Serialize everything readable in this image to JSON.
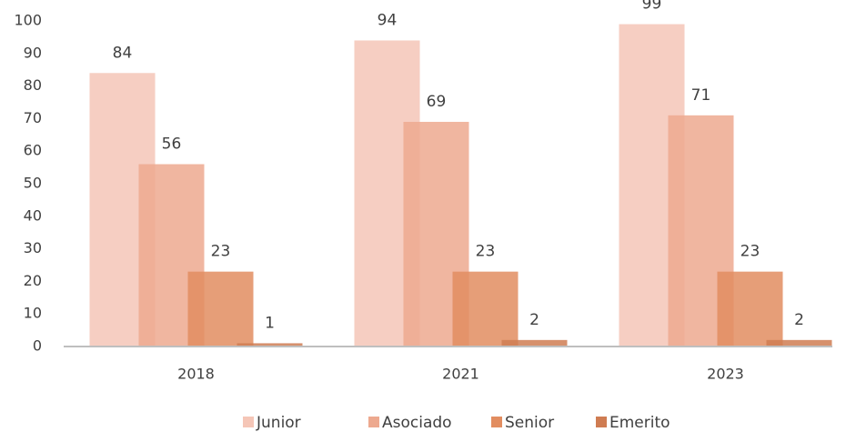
{
  "chart_data": {
    "type": "bar",
    "categories": [
      "2018",
      "2021",
      "2023"
    ],
    "series": [
      {
        "name": "Junior",
        "color": "#f5c6b7",
        "values": [
          84,
          94,
          99
        ]
      },
      {
        "name": "Asociado",
        "color": "#eda98f",
        "values": [
          56,
          69,
          71
        ]
      },
      {
        "name": "Senior",
        "color": "#e28d60",
        "values": [
          23,
          23,
          23
        ]
      },
      {
        "name": "Emerito",
        "color": "#cf7c52",
        "values": [
          1,
          2,
          2
        ]
      }
    ],
    "ylim": [
      0,
      100
    ],
    "yticks": [
      0,
      10,
      20,
      30,
      40,
      50,
      60,
      70,
      80,
      90,
      100
    ],
    "grid": false,
    "legend": "bottom"
  }
}
